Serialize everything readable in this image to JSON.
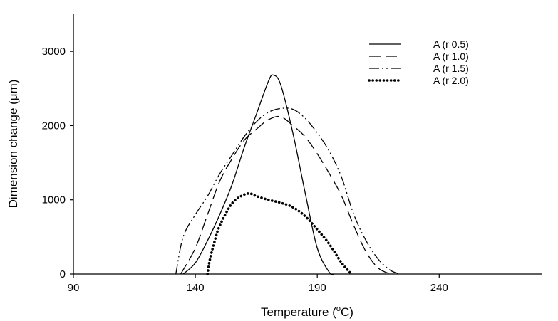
{
  "chart_data": {
    "type": "line",
    "title": "",
    "xlabel": "Temperature (",
    "xlabel_sup": "o",
    "xlabel_suffix": "C)",
    "ylabel": "Dimension change (μm)",
    "xlim": [
      90,
      282
    ],
    "ylim": [
      0,
      3500
    ],
    "xticks": [
      90,
      140,
      190,
      240
    ],
    "yticks": [
      0,
      1000,
      2000,
      3000
    ],
    "grid": false,
    "legend_position": "top-right",
    "series": [
      {
        "name": "A (r 0.5)",
        "style": "solid",
        "x": [
          135,
          140,
          145,
          150,
          155,
          160,
          165,
          170,
          172,
          175,
          180,
          185,
          190,
          195,
          197
        ],
        "y": [
          0,
          150,
          450,
          800,
          1200,
          1700,
          2150,
          2600,
          2680,
          2550,
          1900,
          1100,
          350,
          20,
          0
        ]
      },
      {
        "name": "A (r 1.0)",
        "style": "dashed",
        "x": [
          134,
          140,
          145,
          150,
          155,
          160,
          165,
          170,
          175,
          180,
          185,
          190,
          195,
          200,
          205,
          210,
          215,
          220
        ],
        "y": [
          0,
          350,
          800,
          1250,
          1550,
          1800,
          1950,
          2080,
          2120,
          2000,
          1850,
          1620,
          1350,
          1050,
          650,
          300,
          80,
          0
        ]
      },
      {
        "name": "A (r 1.5)",
        "style": "dash-dot-dot",
        "x": [
          132,
          135,
          140,
          145,
          150,
          155,
          160,
          165,
          170,
          175,
          180,
          185,
          190,
          195,
          200,
          205,
          210,
          215,
          220,
          224
        ],
        "y": [
          0,
          500,
          800,
          1050,
          1350,
          1600,
          1850,
          2050,
          2180,
          2230,
          2220,
          2100,
          1900,
          1650,
          1300,
          800,
          450,
          200,
          50,
          0
        ]
      },
      {
        "name": "A (r 2.0)",
        "style": "dotted",
        "x": [
          145,
          146,
          148,
          150,
          155,
          160,
          163,
          165,
          170,
          175,
          180,
          185,
          190,
          195,
          200,
          204
        ],
        "y": [
          0,
          200,
          450,
          650,
          950,
          1070,
          1080,
          1050,
          1000,
          960,
          900,
          780,
          600,
          400,
          150,
          0
        ]
      }
    ]
  }
}
